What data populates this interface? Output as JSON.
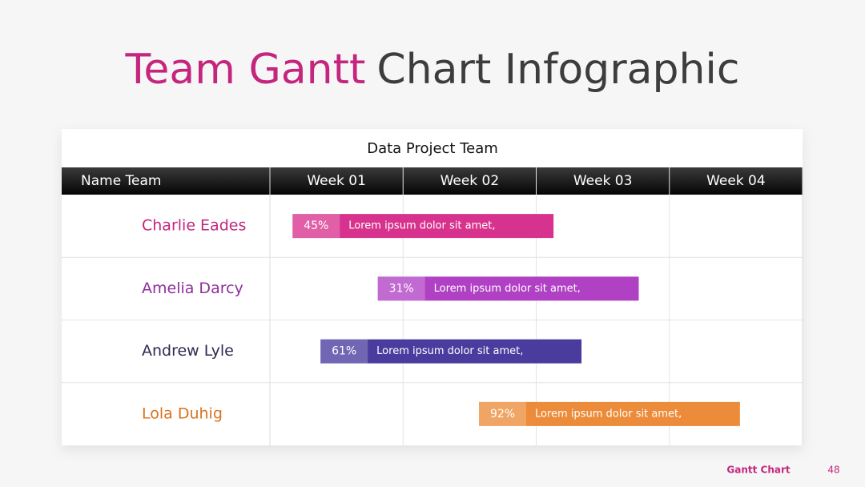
{
  "chart_data": {
    "type": "gantt",
    "title_highlight": "Team Gantt",
    "title": "Chart Infographic",
    "subtitle": "Data Project Team",
    "columns": [
      "Name Team",
      "Week 01",
      "Week 02",
      "Week 03",
      "Week 04"
    ],
    "xlim": [
      0,
      4
    ],
    "categories": [
      "Charlie Eades",
      "Amelia Darcy",
      "Andrew Lyle",
      "Lola Duhig"
    ],
    "name_colors": [
      "#c4267e",
      "#8e2f9c",
      "#2e2a50",
      "#d9731d"
    ],
    "colors": [
      "#d8328f",
      "#b040c4",
      "#4a3c9e",
      "#ec8c3a"
    ],
    "starts": [
      0.17,
      0.81,
      0.38,
      1.57
    ],
    "ends": [
      2.13,
      2.77,
      2.34,
      3.53
    ],
    "values": [
      45,
      31,
      61,
      92
    ],
    "value_labels": [
      "45%",
      "31%",
      "61%",
      "92%"
    ],
    "notes": [
      "Lorem ipsum dolor sit amet,",
      "Lorem ipsum dolor sit amet,",
      "Lorem ipsum dolor sit amet,",
      "Lorem ipsum dolor sit amet,"
    ],
    "footer": "Gantt Chart",
    "page": "48"
  }
}
